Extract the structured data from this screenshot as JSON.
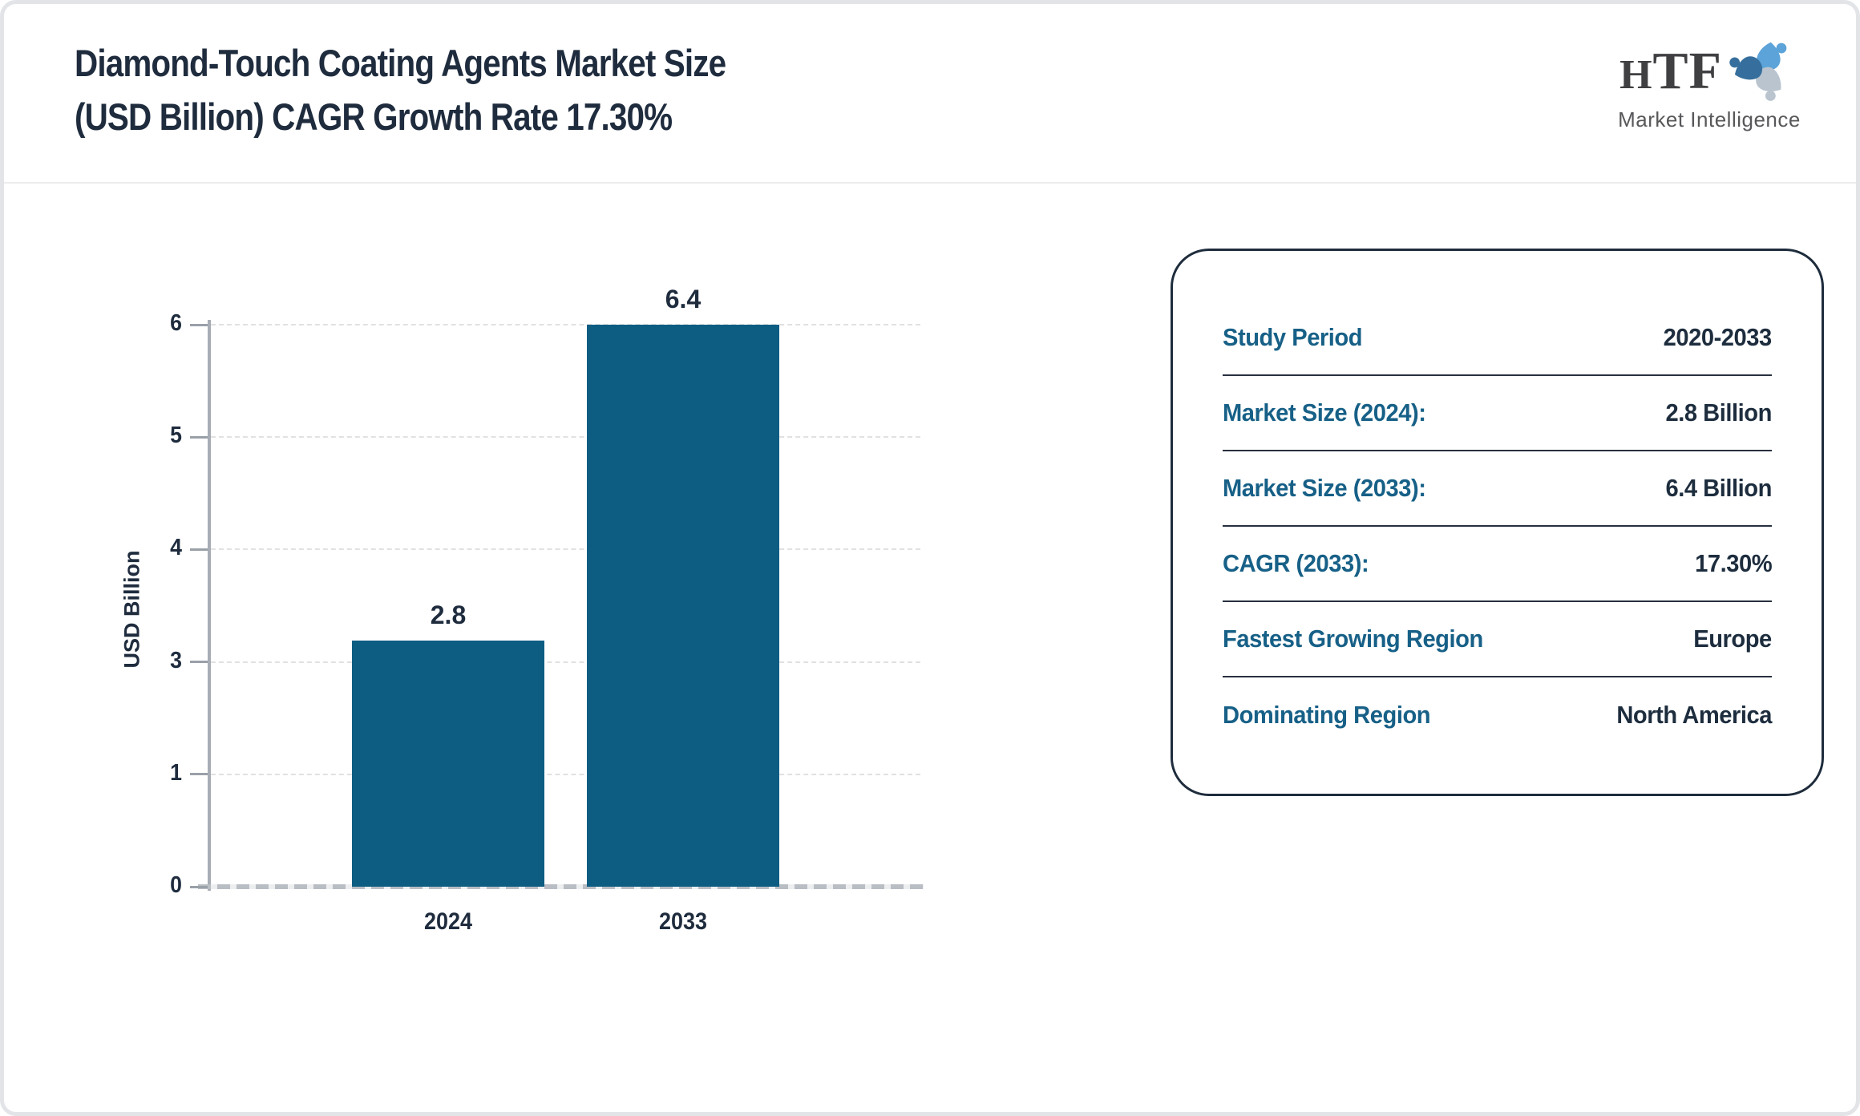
{
  "header": {
    "title_line1": "Diamond-Touch Coating Agents Market Size",
    "title_line2": "(USD Billion) CAGR Growth Rate 17.30%",
    "logo": {
      "text": "HTF",
      "subtext": "Market Intelligence",
      "swirl_colors": [
        "#5ba3d9",
        "#b9c4cf",
        "#366f9d"
      ]
    }
  },
  "chart_data": {
    "type": "bar",
    "title": "Diamond-Touch Coating Agents Market Size (USD Billion) CAGR Growth Rate 17.30%",
    "categories": [
      "2024",
      "2033"
    ],
    "values": [
      2.8,
      6.4
    ],
    "bar_labels": [
      "2.8",
      "6.4"
    ],
    "xlabel": "",
    "ylabel": "USD Billion",
    "ytick_labels": [
      "0",
      "1",
      "3",
      "4",
      "5",
      "6"
    ],
    "ylim": [
      0,
      6.4
    ],
    "grid": true,
    "gridline_style": "dashed",
    "legend": "none",
    "bar_color": "#0d5d83"
  },
  "panel": {
    "rows": [
      {
        "label": "Study Period",
        "value": "2020-2033"
      },
      {
        "label": "Market Size (2024):",
        "value": "2.8 Billion"
      },
      {
        "label": "Market Size (2033):",
        "value": "6.4 Billion"
      },
      {
        "label": "CAGR (2033):",
        "value": "17.30%"
      },
      {
        "label": "Fastest Growing Region",
        "value": "Europe"
      },
      {
        "label": "Dominating Region",
        "value": "North America"
      }
    ],
    "label_color": "#176087",
    "value_color": "#1d2d3e"
  }
}
